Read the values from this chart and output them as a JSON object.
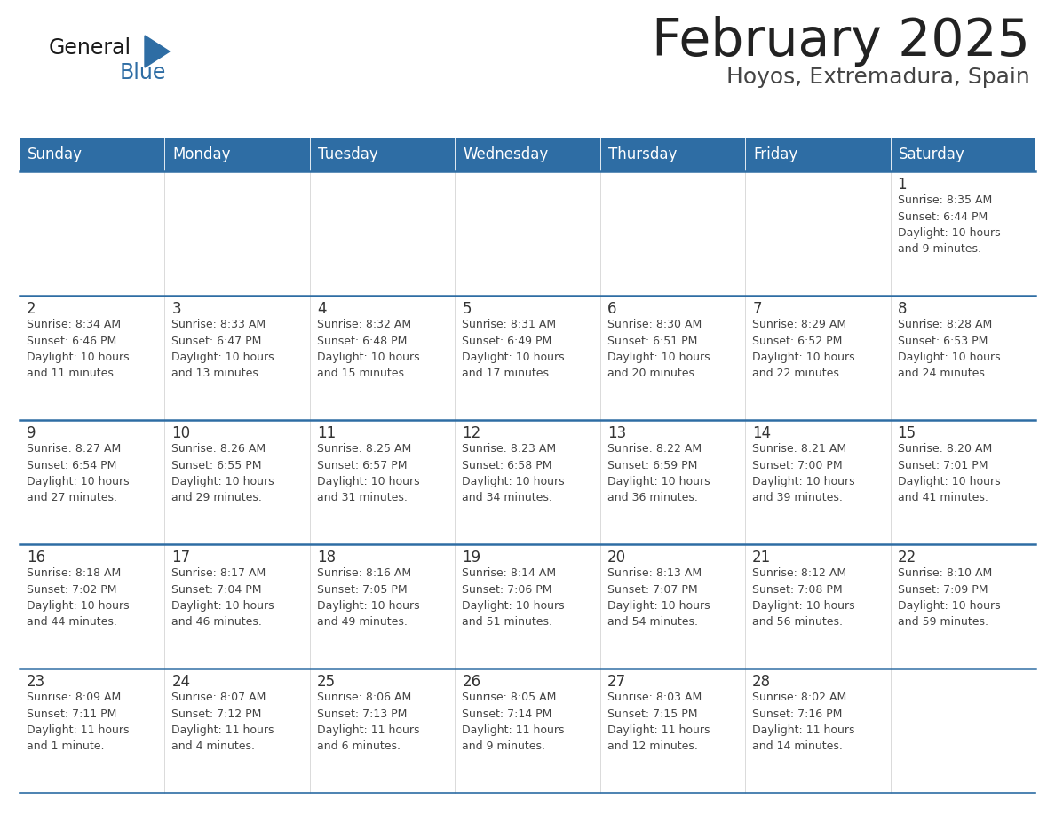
{
  "title": "February 2025",
  "subtitle": "Hoyos, Extremadura, Spain",
  "days_of_week": [
    "Sunday",
    "Monday",
    "Tuesday",
    "Wednesday",
    "Thursday",
    "Friday",
    "Saturday"
  ],
  "header_bg": "#2E6DA4",
  "header_text_color": "#FFFFFF",
  "cell_bg": "#FFFFFF",
  "cell_bg_empty_row": "#F5F5F5",
  "divider_color": "#2E6DA4",
  "col_divider_color": "#CCCCCC",
  "day_num_color": "#333333",
  "info_text_color": "#444444",
  "title_color": "#222222",
  "subtitle_color": "#444444",
  "logo_general_color": "#1a1a1a",
  "logo_blue_color": "#2E6DA4",
  "weeks": [
    [
      {
        "day": null,
        "info": null
      },
      {
        "day": null,
        "info": null
      },
      {
        "day": null,
        "info": null
      },
      {
        "day": null,
        "info": null
      },
      {
        "day": null,
        "info": null
      },
      {
        "day": null,
        "info": null
      },
      {
        "day": 1,
        "info": "Sunrise: 8:35 AM\nSunset: 6:44 PM\nDaylight: 10 hours\nand 9 minutes."
      }
    ],
    [
      {
        "day": 2,
        "info": "Sunrise: 8:34 AM\nSunset: 6:46 PM\nDaylight: 10 hours\nand 11 minutes."
      },
      {
        "day": 3,
        "info": "Sunrise: 8:33 AM\nSunset: 6:47 PM\nDaylight: 10 hours\nand 13 minutes."
      },
      {
        "day": 4,
        "info": "Sunrise: 8:32 AM\nSunset: 6:48 PM\nDaylight: 10 hours\nand 15 minutes."
      },
      {
        "day": 5,
        "info": "Sunrise: 8:31 AM\nSunset: 6:49 PM\nDaylight: 10 hours\nand 17 minutes."
      },
      {
        "day": 6,
        "info": "Sunrise: 8:30 AM\nSunset: 6:51 PM\nDaylight: 10 hours\nand 20 minutes."
      },
      {
        "day": 7,
        "info": "Sunrise: 8:29 AM\nSunset: 6:52 PM\nDaylight: 10 hours\nand 22 minutes."
      },
      {
        "day": 8,
        "info": "Sunrise: 8:28 AM\nSunset: 6:53 PM\nDaylight: 10 hours\nand 24 minutes."
      }
    ],
    [
      {
        "day": 9,
        "info": "Sunrise: 8:27 AM\nSunset: 6:54 PM\nDaylight: 10 hours\nand 27 minutes."
      },
      {
        "day": 10,
        "info": "Sunrise: 8:26 AM\nSunset: 6:55 PM\nDaylight: 10 hours\nand 29 minutes."
      },
      {
        "day": 11,
        "info": "Sunrise: 8:25 AM\nSunset: 6:57 PM\nDaylight: 10 hours\nand 31 minutes."
      },
      {
        "day": 12,
        "info": "Sunrise: 8:23 AM\nSunset: 6:58 PM\nDaylight: 10 hours\nand 34 minutes."
      },
      {
        "day": 13,
        "info": "Sunrise: 8:22 AM\nSunset: 6:59 PM\nDaylight: 10 hours\nand 36 minutes."
      },
      {
        "day": 14,
        "info": "Sunrise: 8:21 AM\nSunset: 7:00 PM\nDaylight: 10 hours\nand 39 minutes."
      },
      {
        "day": 15,
        "info": "Sunrise: 8:20 AM\nSunset: 7:01 PM\nDaylight: 10 hours\nand 41 minutes."
      }
    ],
    [
      {
        "day": 16,
        "info": "Sunrise: 8:18 AM\nSunset: 7:02 PM\nDaylight: 10 hours\nand 44 minutes."
      },
      {
        "day": 17,
        "info": "Sunrise: 8:17 AM\nSunset: 7:04 PM\nDaylight: 10 hours\nand 46 minutes."
      },
      {
        "day": 18,
        "info": "Sunrise: 8:16 AM\nSunset: 7:05 PM\nDaylight: 10 hours\nand 49 minutes."
      },
      {
        "day": 19,
        "info": "Sunrise: 8:14 AM\nSunset: 7:06 PM\nDaylight: 10 hours\nand 51 minutes."
      },
      {
        "day": 20,
        "info": "Sunrise: 8:13 AM\nSunset: 7:07 PM\nDaylight: 10 hours\nand 54 minutes."
      },
      {
        "day": 21,
        "info": "Sunrise: 8:12 AM\nSunset: 7:08 PM\nDaylight: 10 hours\nand 56 minutes."
      },
      {
        "day": 22,
        "info": "Sunrise: 8:10 AM\nSunset: 7:09 PM\nDaylight: 10 hours\nand 59 minutes."
      }
    ],
    [
      {
        "day": 23,
        "info": "Sunrise: 8:09 AM\nSunset: 7:11 PM\nDaylight: 11 hours\nand 1 minute."
      },
      {
        "day": 24,
        "info": "Sunrise: 8:07 AM\nSunset: 7:12 PM\nDaylight: 11 hours\nand 4 minutes."
      },
      {
        "day": 25,
        "info": "Sunrise: 8:06 AM\nSunset: 7:13 PM\nDaylight: 11 hours\nand 6 minutes."
      },
      {
        "day": 26,
        "info": "Sunrise: 8:05 AM\nSunset: 7:14 PM\nDaylight: 11 hours\nand 9 minutes."
      },
      {
        "day": 27,
        "info": "Sunrise: 8:03 AM\nSunset: 7:15 PM\nDaylight: 11 hours\nand 12 minutes."
      },
      {
        "day": 28,
        "info": "Sunrise: 8:02 AM\nSunset: 7:16 PM\nDaylight: 11 hours\nand 14 minutes."
      },
      {
        "day": null,
        "info": null
      }
    ]
  ]
}
